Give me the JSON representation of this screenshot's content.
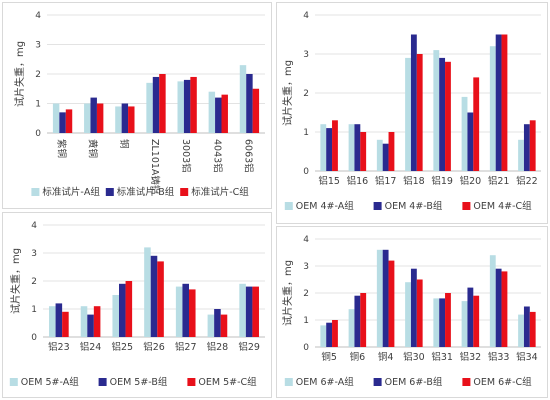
{
  "colors": {
    "A": "#b8dde4",
    "B": "#2a2a8f",
    "C": "#e8101a"
  },
  "chart_data": [
    {
      "type": "bar",
      "ylabel": "试片失重，mg",
      "ylim": [
        0,
        4
      ],
      "yticks": [
        0,
        1,
        2,
        3,
        4
      ],
      "categories": [
        "紫铜",
        "黄铜",
        "铜",
        "ZL101A铸铝",
        "3003铝",
        "4043铝",
        "6063铝"
      ],
      "series": [
        {
          "name": "标准试片-A组",
          "values": [
            1.0,
            1.0,
            0.9,
            1.7,
            1.75,
            1.4,
            2.3
          ]
        },
        {
          "name": "标准试片-B组",
          "values": [
            0.7,
            1.2,
            1.0,
            1.9,
            1.8,
            1.2,
            2.0
          ]
        },
        {
          "name": "标准试片-C组",
          "values": [
            0.8,
            1.0,
            0.9,
            2.0,
            1.9,
            1.3,
            1.5
          ]
        }
      ],
      "grid": "horizontal",
      "legend": "bottom"
    },
    {
      "type": "bar",
      "ylabel": "试片失重，mg",
      "ylim": [
        0,
        4
      ],
      "yticks": [
        0,
        1,
        2,
        3,
        4
      ],
      "categories": [
        "铝15",
        "铝16",
        "铝17",
        "铝18",
        "铝19",
        "铝20",
        "铝21",
        "铝22"
      ],
      "series": [
        {
          "name": "OEM 4#-A组",
          "values": [
            1.2,
            1.2,
            0.8,
            2.9,
            3.1,
            1.9,
            3.2,
            0.8
          ]
        },
        {
          "name": "OEM 4#-B组",
          "values": [
            1.1,
            1.2,
            0.7,
            3.5,
            2.9,
            1.5,
            3.5,
            1.2
          ]
        },
        {
          "name": "OEM 4#-C组",
          "values": [
            1.3,
            1.0,
            1.0,
            3.0,
            2.8,
            2.4,
            3.5,
            1.3
          ]
        }
      ],
      "grid": "horizontal",
      "legend": "bottom"
    },
    {
      "type": "bar",
      "ylabel": "试片失重，mg",
      "ylim": [
        0,
        4
      ],
      "yticks": [
        0,
        1,
        2,
        3,
        4
      ],
      "categories": [
        "铝23",
        "铝24",
        "铝25",
        "铝26",
        "铝27",
        "铝28",
        "铝29"
      ],
      "series": [
        {
          "name": "OEM 5#-A组",
          "values": [
            1.1,
            1.1,
            1.5,
            3.2,
            1.8,
            0.8,
            1.9
          ]
        },
        {
          "name": "OEM 5#-B组",
          "values": [
            1.2,
            0.8,
            1.9,
            2.9,
            1.9,
            1.0,
            1.8
          ]
        },
        {
          "name": "OEM 5#-C组",
          "values": [
            0.9,
            1.1,
            2.0,
            2.7,
            1.7,
            0.8,
            1.8
          ]
        }
      ],
      "grid": "horizontal",
      "legend": "bottom"
    },
    {
      "type": "bar",
      "ylabel": "试片失重，mg",
      "ylim": [
        0,
        4
      ],
      "yticks": [
        0,
        1,
        2,
        3,
        4
      ],
      "categories": [
        "铜5",
        "铜6",
        "铜4",
        "铝30",
        "铝31",
        "铝32",
        "铝33",
        "铝34"
      ],
      "series": [
        {
          "name": "OEM 6#-A组",
          "values": [
            0.8,
            1.4,
            3.6,
            2.4,
            1.8,
            1.7,
            3.4,
            1.2
          ]
        },
        {
          "name": "OEM 6#-B组",
          "values": [
            0.9,
            1.9,
            3.6,
            2.9,
            1.8,
            2.2,
            2.9,
            1.5
          ]
        },
        {
          "name": "OEM 6#-C组",
          "values": [
            1.0,
            2.0,
            3.2,
            2.5,
            2.0,
            1.9,
            2.8,
            1.3
          ]
        }
      ],
      "grid": "horizontal",
      "legend": "bottom"
    }
  ]
}
